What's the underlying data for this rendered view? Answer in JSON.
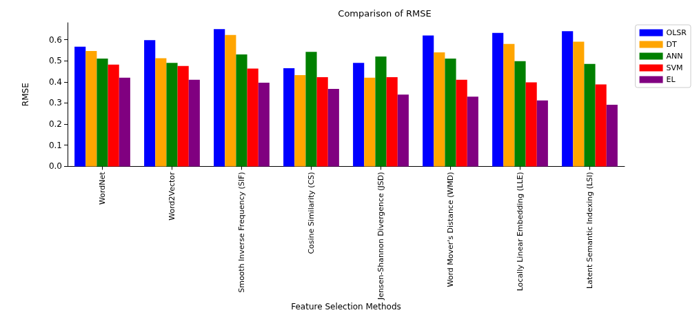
{
  "chart_data": {
    "type": "bar",
    "title": "Comparison of RMSE",
    "xlabel": "Feature Selection Methods",
    "ylabel": "RMSE",
    "categories": [
      "WordNet",
      "Word2Vector",
      "Smooth Inverse Frequency (SIF)",
      "Cosine Similarity (CS)",
      "Jensen-Shannon Divergence (JSD)",
      "Word Mover's Distance (WMD)",
      "Locally Linear Embedding (LLE)",
      "Latent Semantic Indexing (LSI)"
    ],
    "series": [
      {
        "name": "OLSR",
        "color": "#0000ff",
        "values": [
          0.567,
          0.598,
          0.65,
          0.465,
          0.49,
          0.62,
          0.632,
          0.64
        ]
      },
      {
        "name": "DT",
        "color": "#ffa500",
        "values": [
          0.546,
          0.512,
          0.622,
          0.432,
          0.42,
          0.54,
          0.58,
          0.59
        ]
      },
      {
        "name": "ANN",
        "color": "#008000",
        "values": [
          0.51,
          0.49,
          0.53,
          0.542,
          0.52,
          0.51,
          0.498,
          0.485
        ]
      },
      {
        "name": "SVM",
        "color": "#ff0000",
        "values": [
          0.482,
          0.475,
          0.463,
          0.422,
          0.422,
          0.41,
          0.398,
          0.388
        ]
      },
      {
        "name": "EL",
        "color": "#800080",
        "values": [
          0.42,
          0.41,
          0.396,
          0.367,
          0.34,
          0.33,
          0.312,
          0.292
        ]
      }
    ],
    "ylim": [
      0,
      0.68
    ],
    "yticks": [
      {
        "value": 0,
        "label": "0.0"
      },
      0.1,
      0.2,
      0.3,
      0.4,
      0.5,
      0.6
    ],
    "grid": false,
    "legend": "top right"
  }
}
